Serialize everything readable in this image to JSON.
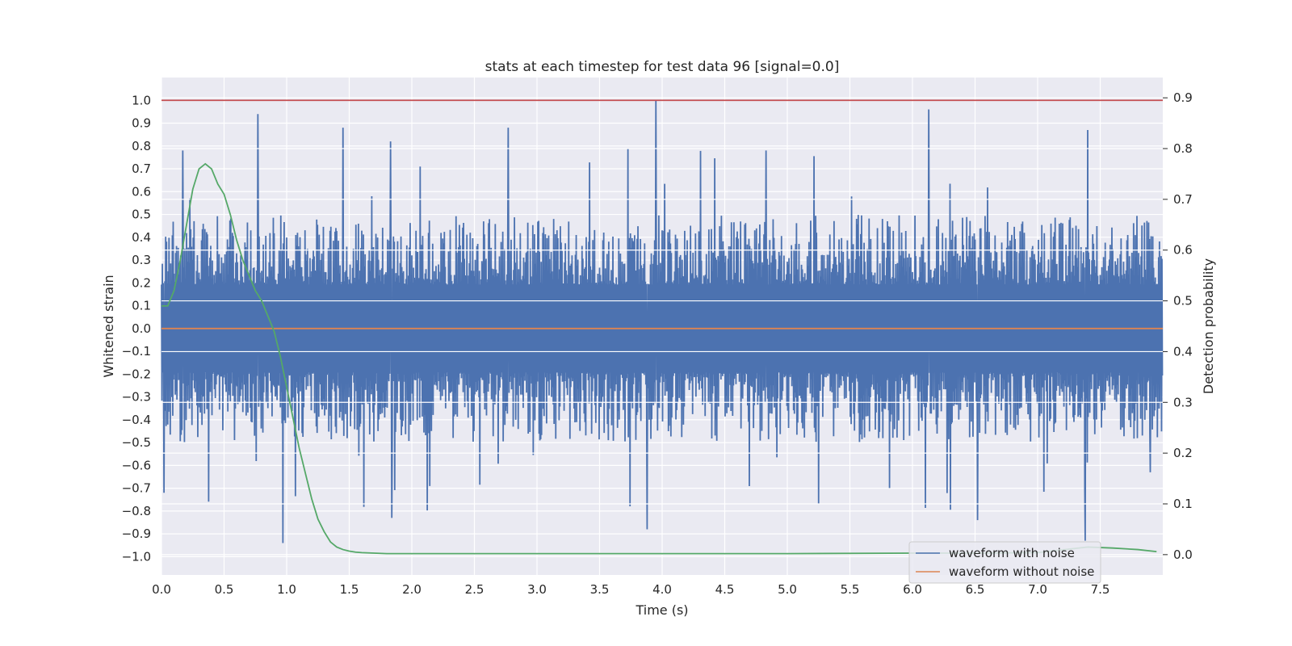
{
  "chart_data": {
    "type": "line",
    "title": "stats at each timestep for test data 96 [signal=0.0]",
    "xlabel": "Time (s)",
    "ylabel": "Whitened strain",
    "y2label": "Detection probability",
    "xlim": [
      0.0,
      8.0
    ],
    "ylim": [
      -1.08,
      1.1
    ],
    "y2lim": [
      -0.04,
      0.94
    ],
    "xticks": [
      "0.0",
      "0.5",
      "1.0",
      "1.5",
      "2.0",
      "2.5",
      "3.0",
      "3.5",
      "4.0",
      "4.5",
      "5.0",
      "5.5",
      "6.0",
      "6.5",
      "7.0",
      "7.5"
    ],
    "xtick_values": [
      0,
      0.5,
      1,
      1.5,
      2,
      2.5,
      3,
      3.5,
      4,
      4.5,
      5,
      5.5,
      6,
      6.5,
      7,
      7.5
    ],
    "yticks": [
      "1.0",
      "0.9",
      "0.8",
      "0.7",
      "0.6",
      "0.5",
      "0.4",
      "0.3",
      "0.2",
      "0.1",
      "0.0",
      "−0.1",
      "−0.2",
      "−0.3",
      "−0.4",
      "−0.5",
      "−0.6",
      "−0.7",
      "−0.8",
      "−0.9",
      "−1.0"
    ],
    "ytick_values": [
      1.0,
      0.9,
      0.8,
      0.7,
      0.6,
      0.5,
      0.4,
      0.3,
      0.2,
      0.1,
      0.0,
      -0.1,
      -0.2,
      -0.3,
      -0.4,
      -0.5,
      -0.6,
      -0.7,
      -0.8,
      -0.9,
      -1.0
    ],
    "y2ticks": [
      "0.9",
      "0.8",
      "0.7",
      "0.6",
      "0.5",
      "0.4",
      "0.3",
      "0.2",
      "0.1",
      "0.0"
    ],
    "y2tick_values": [
      0.9,
      0.8,
      0.7,
      0.6,
      0.5,
      0.4,
      0.3,
      0.2,
      0.1,
      0.0
    ],
    "grid": true,
    "legend_position": "lower-right",
    "series": [
      {
        "name": "waveform with noise",
        "color": "#4c72b0",
        "axis": "left",
        "kind": "noise",
        "typical_amplitude": 0.35,
        "peaks_top": [
          [
            0.17,
            0.78
          ],
          [
            0.77,
            0.94
          ],
          [
            1.45,
            0.88
          ],
          [
            1.83,
            0.82
          ],
          [
            2.77,
            0.88
          ],
          [
            3.95,
            1.0
          ],
          [
            4.83,
            0.78
          ],
          [
            6.13,
            0.96
          ],
          [
            7.4,
            0.87
          ]
        ],
        "peaks_bottom": [
          [
            0.02,
            -0.72
          ],
          [
            0.97,
            -0.94
          ],
          [
            1.84,
            -0.83
          ],
          [
            3.88,
            -0.88
          ],
          [
            5.25,
            -0.77
          ],
          [
            6.52,
            -0.84
          ],
          [
            7.38,
            -0.93
          ],
          [
            7.9,
            -0.63
          ]
        ]
      },
      {
        "name": "waveform without noise",
        "color": "#dd8452",
        "axis": "left",
        "x": [
          0.0,
          8.0
        ],
        "y": [
          0.0,
          0.0
        ]
      },
      {
        "name": "",
        "color": "#55a868",
        "axis": "right",
        "x": [
          0.0,
          0.05,
          0.1,
          0.15,
          0.2,
          0.25,
          0.3,
          0.35,
          0.4,
          0.45,
          0.5,
          0.55,
          0.6,
          0.65,
          0.7,
          0.75,
          0.8,
          0.85,
          0.9,
          0.95,
          1.0,
          1.05,
          1.1,
          1.15,
          1.2,
          1.25,
          1.3,
          1.35,
          1.4,
          1.45,
          1.5,
          1.55,
          1.6,
          1.7,
          1.8,
          2.0,
          2.5,
          3.0,
          4.0,
          5.0,
          6.0,
          6.5,
          7.0,
          7.4,
          7.6,
          7.8,
          7.95
        ],
        "y": [
          0.49,
          0.49,
          0.52,
          0.58,
          0.65,
          0.72,
          0.76,
          0.77,
          0.76,
          0.73,
          0.71,
          0.67,
          0.62,
          0.58,
          0.55,
          0.52,
          0.5,
          0.47,
          0.44,
          0.39,
          0.33,
          0.27,
          0.21,
          0.16,
          0.11,
          0.07,
          0.045,
          0.025,
          0.015,
          0.01,
          0.007,
          0.005,
          0.004,
          0.003,
          0.002,
          0.002,
          0.002,
          0.002,
          0.002,
          0.002,
          0.003,
          0.003,
          0.004,
          0.015,
          0.013,
          0.01,
          0.006
        ]
      },
      {
        "name": "",
        "color": "#c44e52",
        "axis": "left",
        "x": [
          0.0,
          8.0
        ],
        "y": [
          1.0,
          1.0
        ]
      }
    ]
  }
}
